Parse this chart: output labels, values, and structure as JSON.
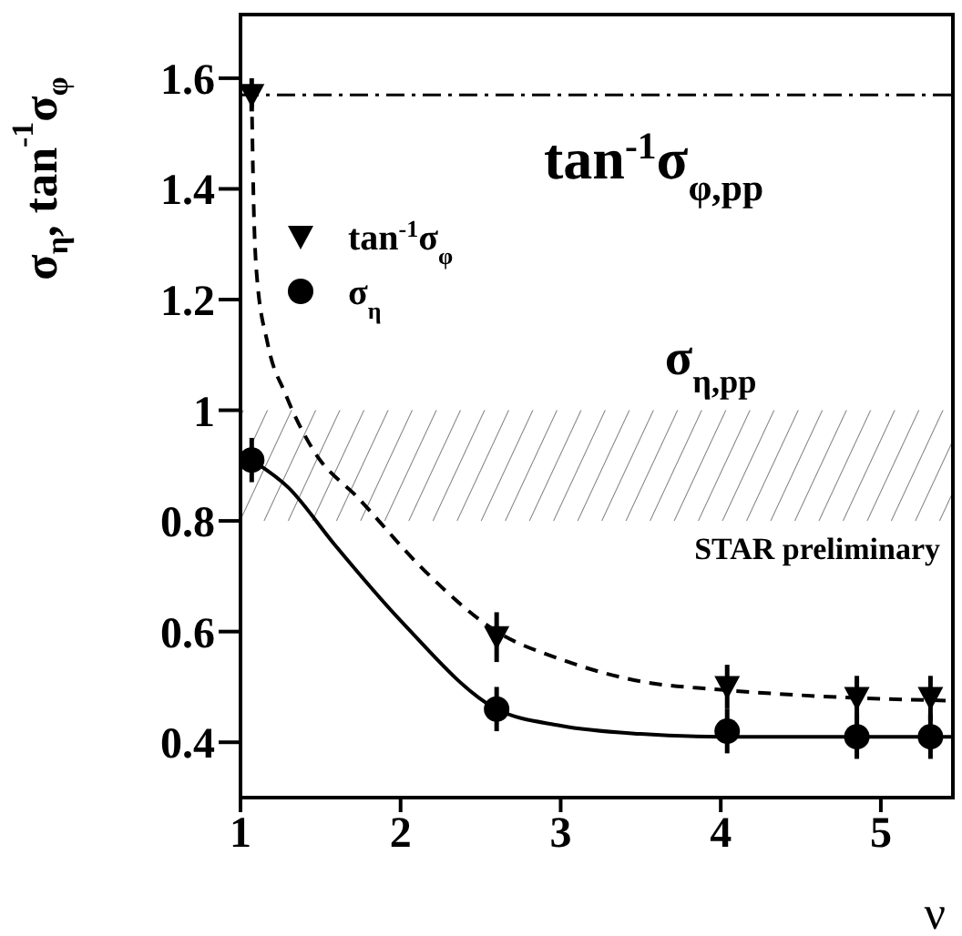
{
  "chart_data": {
    "type": "scatter",
    "ylabel": "σ$_{η}$, tan$^{-1}$σ$_{φ}$",
    "xlabel": "ν",
    "xlim": [
      1,
      5.45
    ],
    "xticks": [
      1,
      2,
      3,
      4,
      5
    ],
    "ylim": [
      0.3,
      1.715
    ],
    "yticks": [
      0.4,
      0.6,
      0.8,
      1,
      1.2,
      1.4,
      1.6
    ],
    "legend": "top left",
    "annotations": [
      "STAR preliminary"
    ],
    "ref_lines": [
      {
        "axis": "y",
        "value": 1.57,
        "label": "tan$^{-1}$σ$_{φ,pp}$",
        "color": "#000000",
        "line_style": "dashdot"
      }
    ],
    "bands": [
      {
        "axis": "y",
        "from": 0.8,
        "to": 1.0,
        "label": "σ$_{η,pp}$",
        "color": "#000000"
      }
    ],
    "series": [
      {
        "name": "tan$^{-1}$σ$_{φ}$",
        "color": "#000000",
        "marker": "triangle",
        "x": [
          1.07,
          2.6,
          4.04,
          4.85,
          5.31
        ],
        "values": [
          1.57,
          0.59,
          0.5,
          0.48,
          0.48
        ],
        "errors": [
          0.03,
          0.045,
          0.04,
          0.04,
          0.04
        ]
      },
      {
        "name": "σ$_{η}$",
        "color": "#000000",
        "marker": "circle",
        "x": [
          1.07,
          2.6,
          4.04,
          4.85,
          5.31
        ],
        "values": [
          0.91,
          0.46,
          0.42,
          0.41,
          0.41
        ],
        "errors": [
          0.04,
          0.04,
          0.04,
          0.04,
          0.04
        ]
      },
      {
        "type": "line",
        "color": "#000000",
        "line_style": "dashed",
        "marker": "none",
        "x": [
          1.07,
          1.08,
          1.1,
          1.17,
          1.28,
          1.45,
          1.74,
          2.15,
          2.6,
          3.0,
          3.5,
          4.0,
          4.5,
          5.45
        ],
        "values": [
          1.57,
          1.4,
          1.25,
          1.12,
          1.03,
          0.93,
          0.84,
          0.71,
          0.6,
          0.55,
          0.51,
          0.495,
          0.485,
          0.475
        ]
      },
      {
        "type": "line",
        "color": "#000000",
        "line_style": "solid",
        "marker": "none",
        "x": [
          1.07,
          1.3,
          1.58,
          2.0,
          2.6,
          3.0,
          3.5,
          4.0,
          5.45
        ],
        "values": [
          0.91,
          0.86,
          0.76,
          0.62,
          0.46,
          0.43,
          0.415,
          0.41,
          0.41
        ]
      }
    ]
  }
}
